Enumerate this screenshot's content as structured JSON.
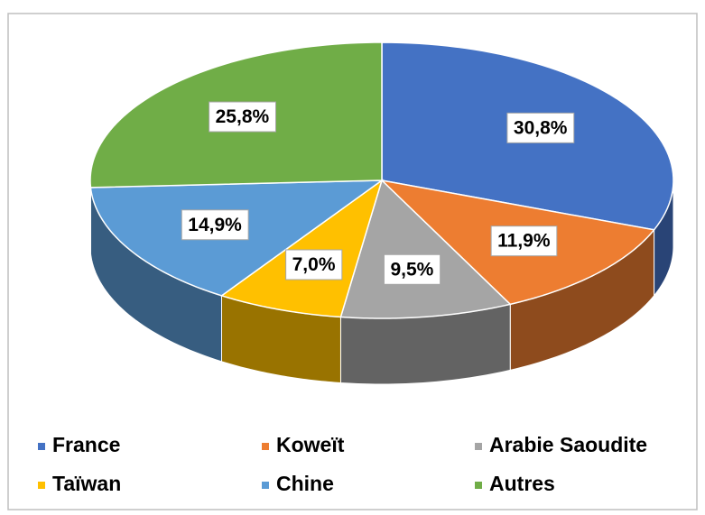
{
  "chart_data": {
    "type": "pie3d",
    "series": [
      {
        "name": "France",
        "color": "#4472c4",
        "values": [
          30.8
        ],
        "value_labels": [
          "30,8%"
        ]
      },
      {
        "name": "Koweït",
        "color": "#ed7d31",
        "values": [
          11.9
        ],
        "value_labels": [
          "11,9%"
        ]
      },
      {
        "name": "Arabie Saoudite",
        "color": "#a5a5a5",
        "values": [
          9.5
        ],
        "value_labels": [
          "9,5%"
        ]
      },
      {
        "name": "Taïwan",
        "color": "#ffc000",
        "values": [
          7.0
        ],
        "value_labels": [
          "7,0%"
        ]
      },
      {
        "name": "Chine",
        "color": "#5b9bd5",
        "values": [
          14.9
        ],
        "value_labels": [
          "14,9%"
        ]
      },
      {
        "name": "Autres",
        "color": "#70ad47",
        "values": [
          25.8
        ],
        "value_labels": [
          "25,8%"
        ]
      }
    ],
    "legend": "bottom"
  }
}
